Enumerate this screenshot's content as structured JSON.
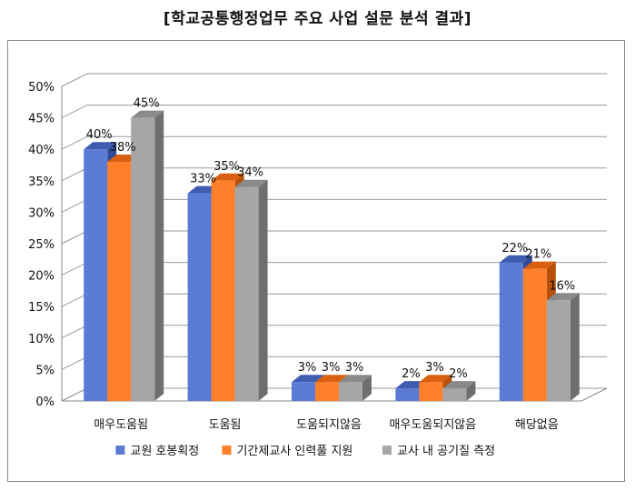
{
  "chart_data": {
    "type": "bar",
    "title": "[학교공통행정업무 주요 사업 설문 분석 결과]",
    "xlabel": "",
    "ylabel": "",
    "categories": [
      "매우도움됨",
      "도움됨",
      "도움되지않음",
      "매우도움되지않음",
      "해당없음"
    ],
    "series": [
      {
        "name": "교원 호봉획정",
        "values": [
          40,
          33,
          3,
          2,
          22
        ],
        "labels": [
          "40%",
          "33%",
          "3%",
          "2%",
          "22%"
        ]
      },
      {
        "name": "기간제교사 인력풀 지원",
        "values": [
          38,
          35,
          3,
          3,
          21
        ],
        "labels": [
          "38%",
          "35%",
          "3%",
          "3%",
          "21%"
        ]
      },
      {
        "name": "교사 내 공기질 측정",
        "values": [
          45,
          34,
          3,
          2,
          16
        ],
        "labels": [
          "45%",
          "34%",
          "3%",
          "2%",
          "16%"
        ]
      }
    ],
    "ylim": [
      0,
      50
    ],
    "yticks": [
      "0%",
      "5%",
      "10%",
      "15%",
      "20%",
      "25%",
      "30%",
      "35%",
      "40%",
      "45%",
      "50%"
    ],
    "grid": true,
    "legend_position": "bottom",
    "style": "3d-clustered-bar"
  },
  "colors": {
    "series": [
      "#5b7bd5",
      "#ff7f2a",
      "#a6a6a6"
    ],
    "series_top": [
      "#3e5cb0",
      "#d96010",
      "#8a8a8a"
    ],
    "series_side": [
      "#2f4a99",
      "#b8500a",
      "#6e6e6e"
    ],
    "grid": "#9a9a9a",
    "wall": "#ffffff"
  }
}
